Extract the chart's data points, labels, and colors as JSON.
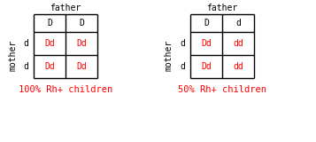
{
  "background": "#ffffff",
  "left_table": {
    "father_cols": [
      "D",
      "D"
    ],
    "mother_rows": [
      "d",
      "d"
    ],
    "cells": [
      [
        "Dd",
        "Dd"
      ],
      [
        "Dd",
        "Dd"
      ]
    ],
    "cell_colors": [
      [
        "red",
        "red"
      ],
      [
        "red",
        "red"
      ]
    ],
    "caption": "100% Rh+ children"
  },
  "right_table": {
    "father_cols": [
      "D",
      "d"
    ],
    "mother_rows": [
      "d",
      "d"
    ],
    "cells": [
      [
        "Dd",
        "dd"
      ],
      [
        "Dd",
        "dd"
      ]
    ],
    "cell_colors": [
      [
        "red",
        "red"
      ],
      [
        "red",
        "red"
      ]
    ],
    "caption": "50% Rh+ children"
  },
  "father_label": "father",
  "mother_label": "mother",
  "caption_color": "red",
  "font_size": 7,
  "caption_font_size": 7.5
}
